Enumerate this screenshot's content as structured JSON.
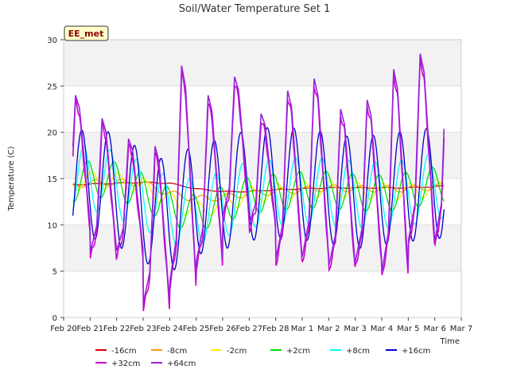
{
  "chart_data": {
    "type": "line",
    "title": "Soil/Water Temperature Set 1",
    "xlabel": "Time",
    "ylabel": "Temperature (C)",
    "site_label": "EE_met",
    "ylim": [
      0,
      30
    ],
    "yticks": [
      0,
      5,
      10,
      15,
      20,
      25,
      30
    ],
    "xlim": [
      0,
      15
    ],
    "xtick_labels": [
      "Feb 20",
      "Feb 21",
      "Feb 22",
      "Feb 23",
      "Feb 24",
      "Feb 25",
      "Feb 26",
      "Feb 27",
      "Feb 28",
      "Mar 1",
      "Mar 2",
      "Mar 3",
      "Mar 4",
      "Mar 5",
      "Mar 6",
      "Mar 7"
    ],
    "grid": "horizontal bands",
    "legend_position": "bottom",
    "day_peaks": [
      24,
      21.5,
      19.3,
      18.5,
      27.2,
      24,
      26,
      22,
      24.5,
      25.8,
      22.5,
      23.5,
      26.8,
      28.5
    ],
    "day_mins": [
      10,
      7,
      7.2,
      1.5,
      3.8,
      6,
      11,
      10,
      6.2,
      6.5,
      5.5,
      6,
      4.8,
      8.2
    ],
    "series": [
      {
        "name": "-16cm",
        "color": "#dd0000",
        "x": [
          0,
          1,
          2,
          3,
          4,
          5,
          6,
          7,
          8,
          9,
          10,
          11,
          12,
          13,
          14.4
        ],
        "y": [
          14.3,
          14.4,
          14.5,
          14.6,
          14.5,
          13.9,
          13.6,
          13.6,
          13.8,
          13.9,
          14.0,
          14.0,
          14.0,
          14.0,
          14.2
        ],
        "amp": 0.05
      },
      {
        "name": "-8cm",
        "color": "#ff9900",
        "x": [
          0,
          1,
          2,
          3,
          4,
          5,
          6,
          7,
          8,
          9,
          10,
          11,
          12,
          13,
          14.4
        ],
        "y": [
          14.2,
          14.5,
          14.6,
          14.5,
          13.4,
          12.8,
          13.0,
          13.4,
          13.6,
          13.8,
          14.0,
          13.9,
          13.9,
          13.9,
          14.2
        ],
        "amp": 0.35
      },
      {
        "name": "-2cm",
        "color": "#ffee00",
        "x": [
          0,
          1,
          2,
          3,
          4,
          5,
          6,
          7,
          8,
          9,
          10,
          11,
          12,
          13,
          14.4
        ],
        "y": [
          14.5,
          14.8,
          14.7,
          14.2,
          12.6,
          11.5,
          12.3,
          13.2,
          13.6,
          13.8,
          13.9,
          13.8,
          13.6,
          13.6,
          14.1
        ],
        "amp": 0.9
      },
      {
        "name": "+2cm",
        "color": "#00dd00",
        "x": [
          0,
          1,
          2,
          3,
          4,
          5,
          6,
          7,
          8,
          9,
          10,
          11,
          12,
          13,
          14.4
        ],
        "y": [
          14.2,
          15.0,
          14.8,
          13.6,
          12.0,
          11.2,
          12.2,
          13.2,
          13.5,
          13.8,
          13.8,
          13.5,
          13.4,
          13.7,
          14.5
        ],
        "amp": 2.0
      },
      {
        "name": "+8cm",
        "color": "#00ffff",
        "x": [
          0,
          1,
          2,
          3,
          4,
          5,
          6,
          7,
          8,
          9,
          10,
          11,
          12,
          13,
          14.4
        ],
        "y": [
          14.0,
          15.2,
          14.3,
          13.2,
          11.5,
          11.4,
          12.2,
          13.3,
          13.5,
          13.7,
          13.6,
          13.3,
          13.2,
          13.5,
          14.4
        ],
        "amp": 3.6
      },
      {
        "name": "+16cm",
        "color": "#0000cc",
        "x": [
          0,
          1,
          2,
          3,
          4,
          5,
          6,
          7,
          8,
          9,
          10,
          11,
          12,
          13,
          14.4
        ],
        "y": [
          13.5,
          14.6,
          13.8,
          12.0,
          10.8,
          12.8,
          13.3,
          14.3,
          14.6,
          14.4,
          14.0,
          13.4,
          13.8,
          14.2,
          14.6
        ],
        "amp": 6.0
      },
      {
        "name": "+32cm",
        "color": "#cc00cc",
        "x": [
          0,
          1,
          2,
          3,
          4,
          5,
          6,
          7,
          8,
          9,
          10,
          11,
          12,
          13,
          14.4
        ],
        "y": [
          13.0,
          15.8,
          14.2,
          12.3,
          11.5,
          15.0,
          14.5,
          16.8,
          15.5,
          15.0,
          14.0,
          14.2,
          15.2,
          16.0,
          17.0
        ],
        "amp": 1.0
      },
      {
        "name": "+64cm",
        "color": "#9922dd",
        "x": [
          0,
          1,
          2,
          3,
          4,
          5,
          6,
          7,
          8,
          9,
          10,
          11,
          12,
          13,
          14.4
        ],
        "y": [
          13.0,
          15.8,
          14.2,
          12.3,
          11.5,
          15.0,
          14.5,
          16.8,
          15.5,
          15.0,
          14.0,
          14.2,
          15.2,
          16.0,
          17.0
        ],
        "amp": 1.0
      }
    ]
  }
}
